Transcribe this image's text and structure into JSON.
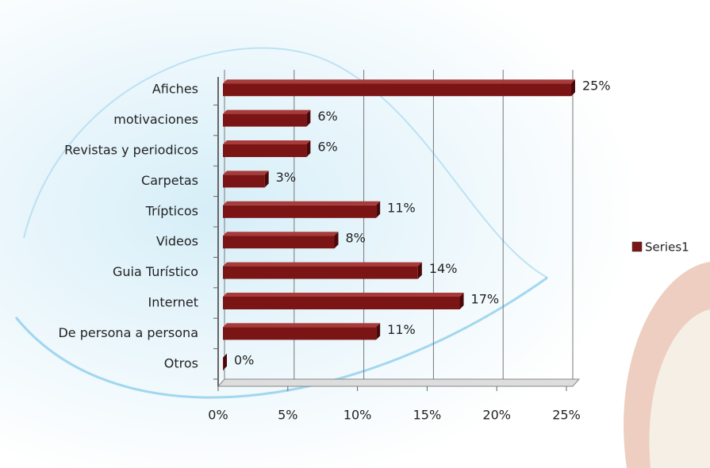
{
  "chart_data": {
    "type": "bar",
    "orientation": "horizontal",
    "categories": [
      "Afiches",
      "motivaciones",
      "Revistas y periodicos",
      "Carpetas",
      "Trípticos",
      "Videos",
      "Guia Turístico",
      "Internet",
      "De persona a persona",
      "Otros"
    ],
    "series": [
      {
        "name": "Series1",
        "color": "#7b1515",
        "values": [
          25,
          6,
          6,
          3,
          11,
          8,
          14,
          17,
          11,
          0
        ],
        "value_labels": [
          "25%",
          "6%",
          "6%",
          "3%",
          "11%",
          "8%",
          "14%",
          "17%",
          "11%",
          "0%"
        ]
      }
    ],
    "xlim": [
      0,
      25
    ],
    "xticks": [
      {
        "value": 0,
        "label": "0%"
      },
      {
        "value": 5,
        "label": "5%"
      },
      {
        "value": 10,
        "label": "10%"
      },
      {
        "value": 15,
        "label": "15%"
      },
      {
        "value": 20,
        "label": "20%"
      },
      {
        "value": 25,
        "label": "25%"
      }
    ],
    "grid": true,
    "legend": "right"
  }
}
